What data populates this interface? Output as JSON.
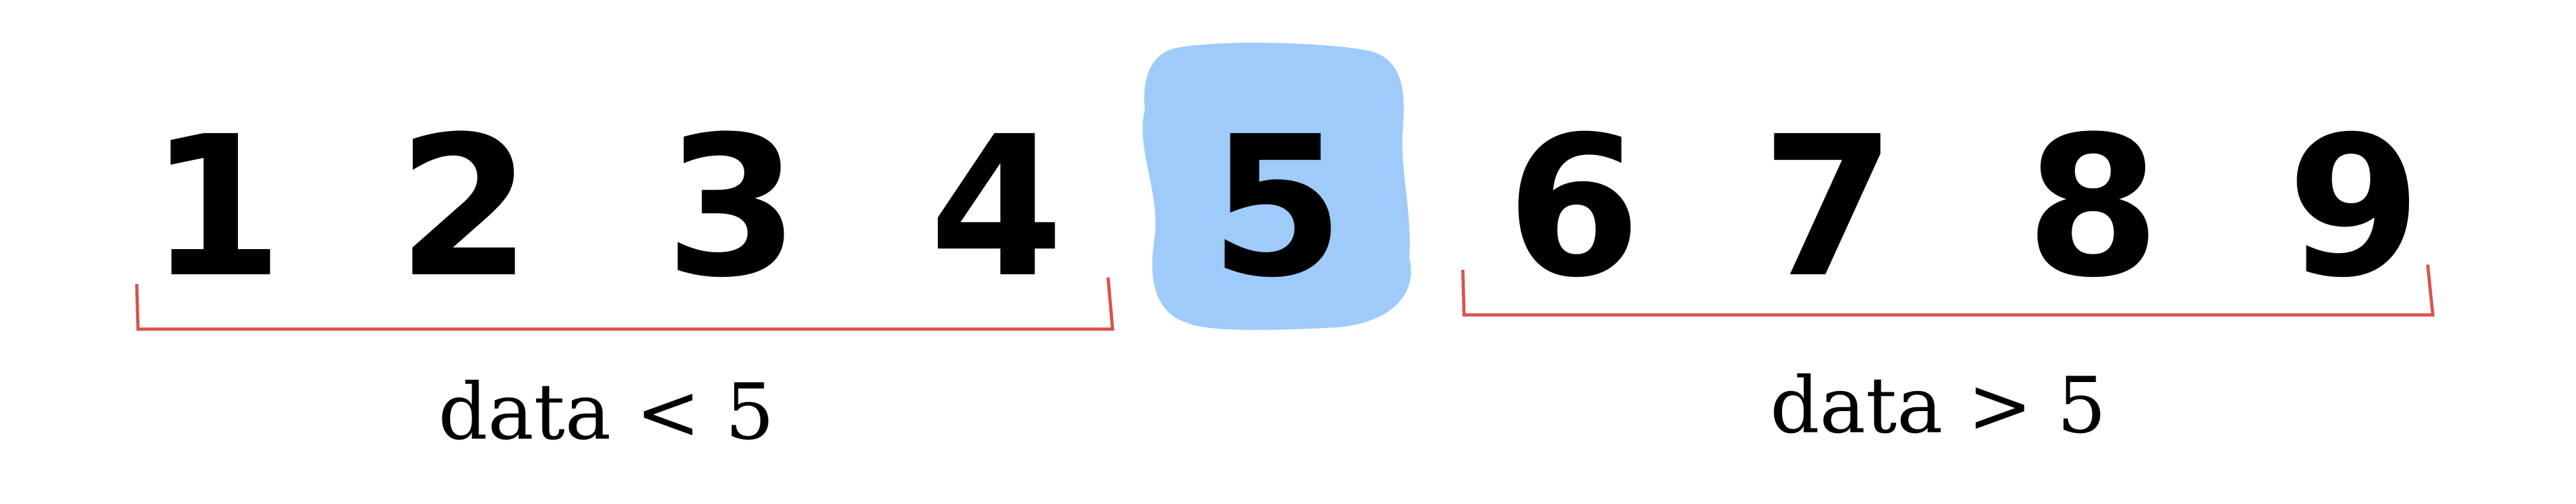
{
  "colors": {
    "digit": "#000000",
    "highlight": "#9ecbfa",
    "bracket": "#d9534f",
    "label": "#000000",
    "background": "#ffffff"
  },
  "digits": [
    "1",
    "2",
    "3",
    "4",
    "5",
    "6",
    "7",
    "8",
    "9"
  ],
  "highlighted_digit": "5",
  "ranges": {
    "left": {
      "label": "data < 5"
    },
    "right": {
      "label": "data > 5"
    }
  }
}
